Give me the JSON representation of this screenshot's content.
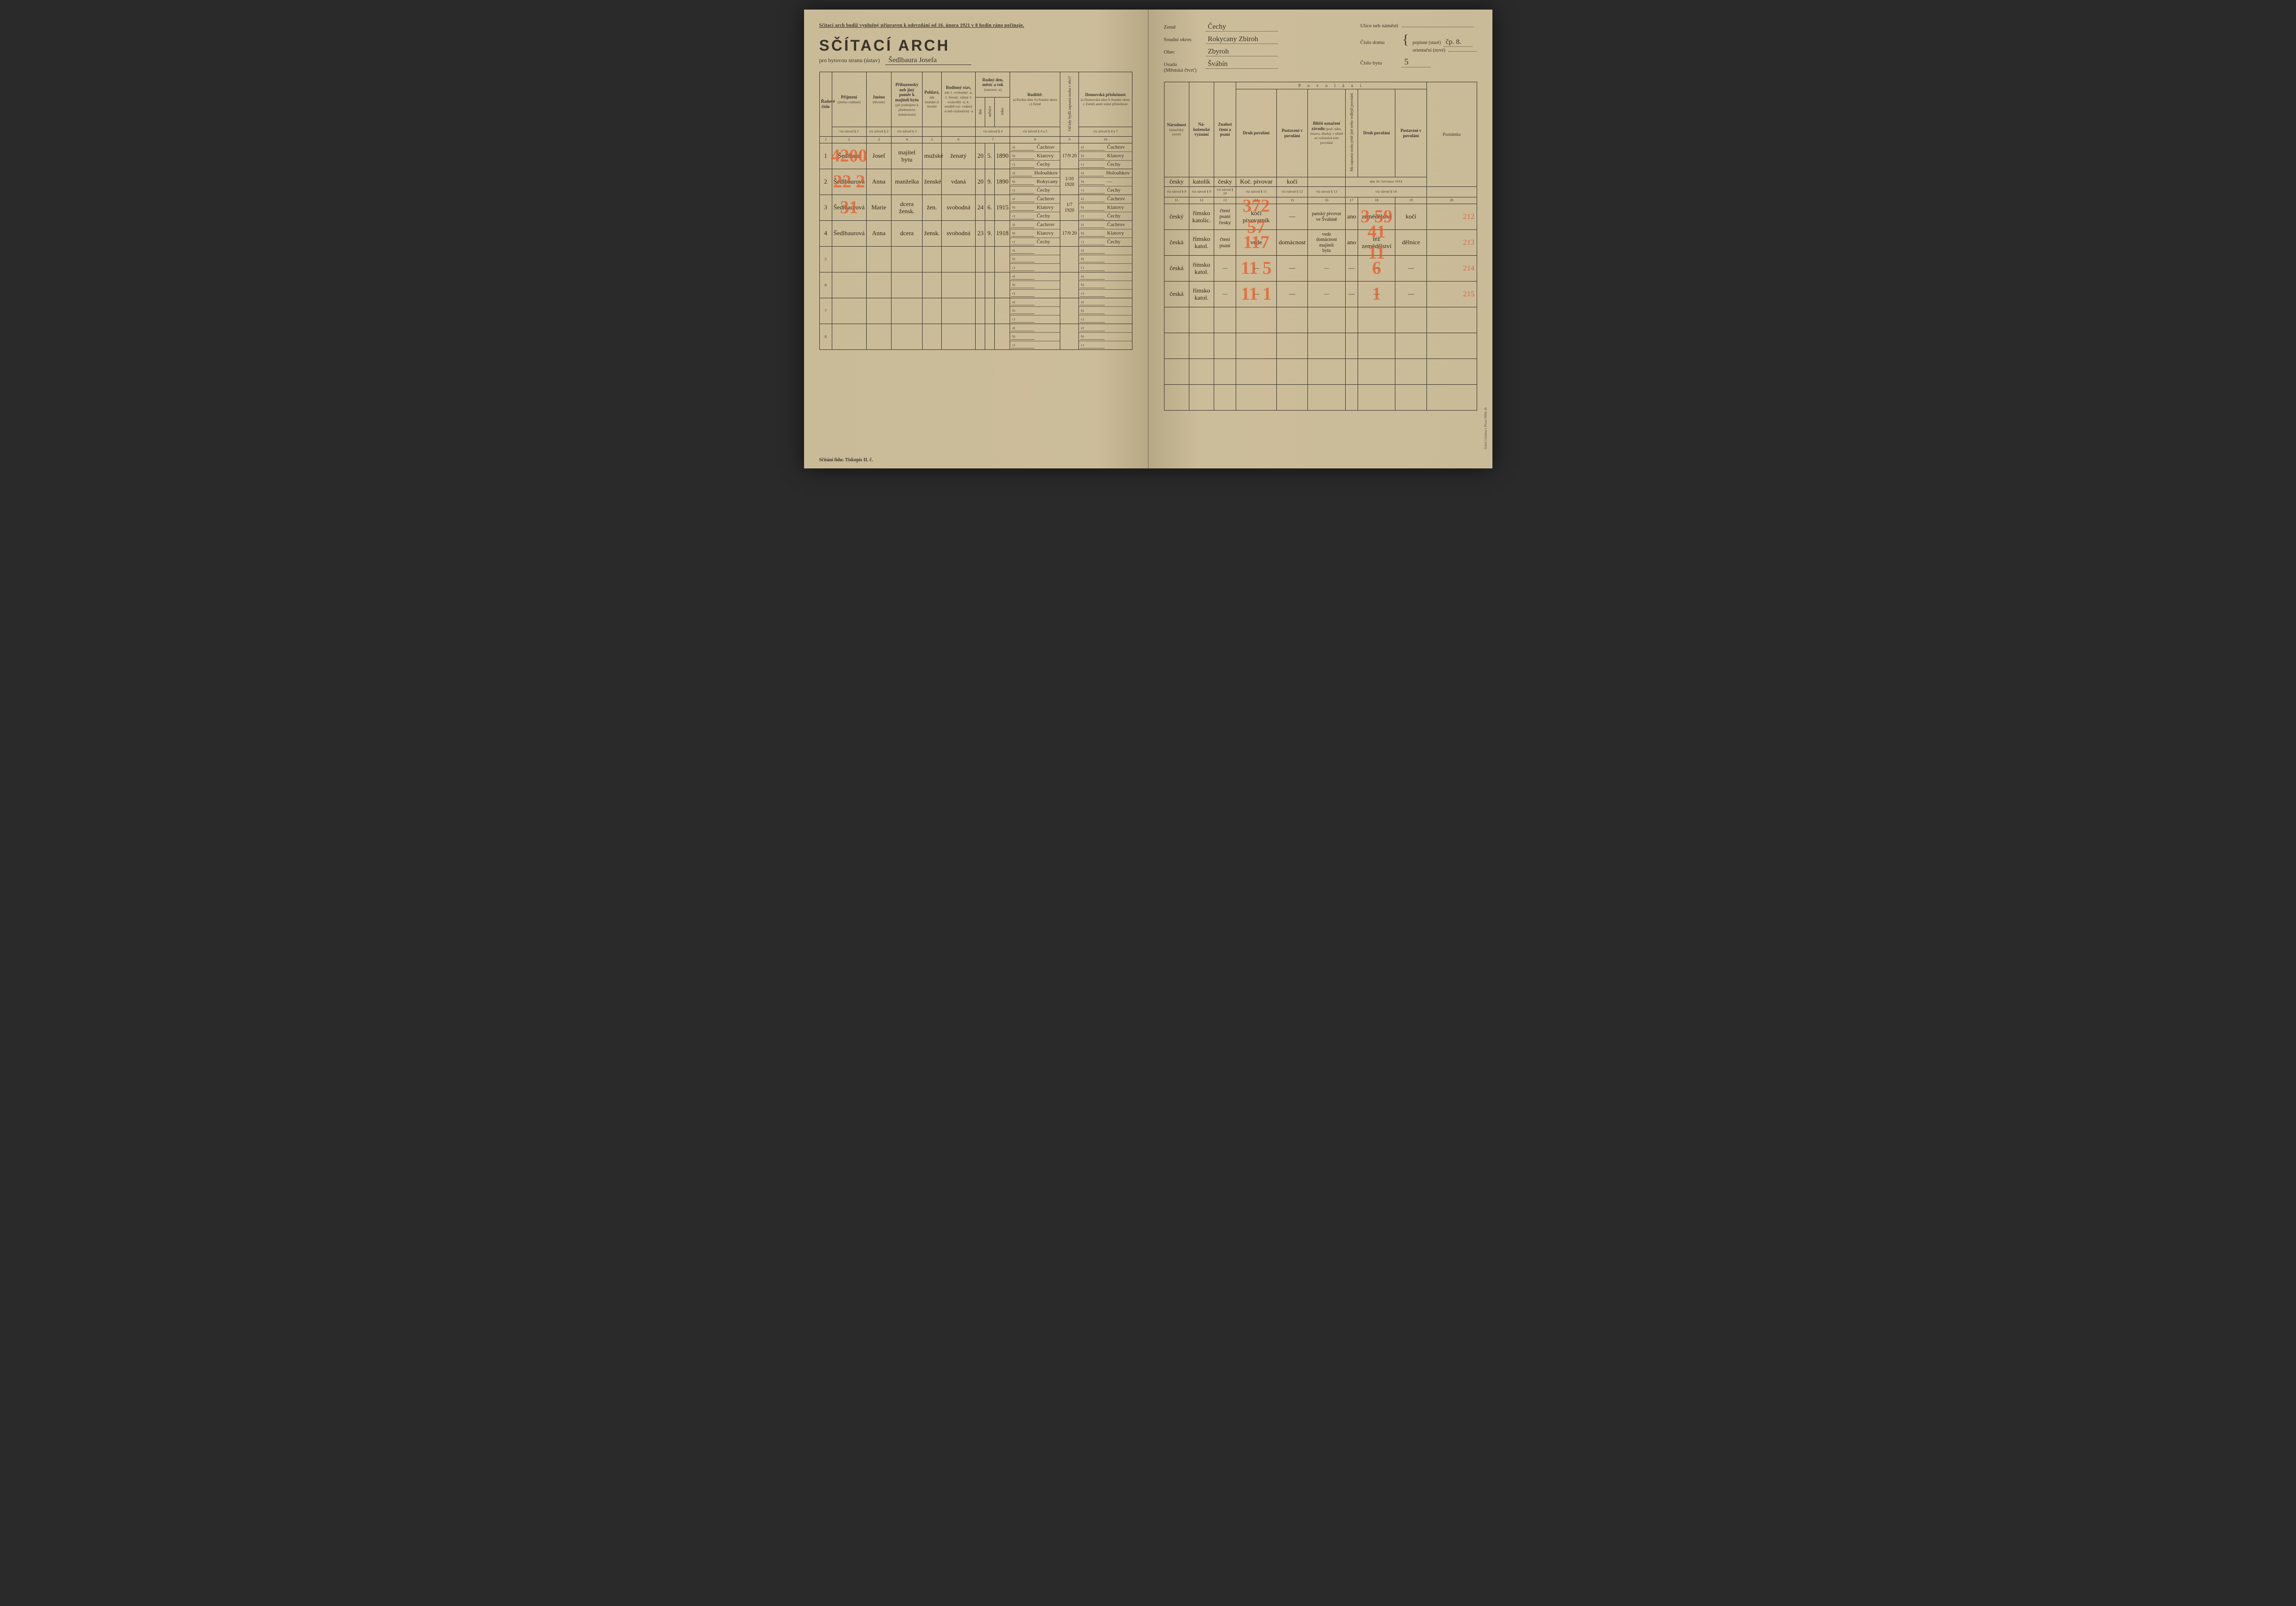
{
  "topInstruction": "Sčítací arch budiž vyplněný připraven k odevzdání od 16. února 1921 v 8 hodin ráno počínaje.",
  "title": "SČÍTACÍ ARCH",
  "subtitleLabel": "pro bytovou stranu (ústav)",
  "householdHead": "Šedlbaura Josefa",
  "meta": {
    "zeme": {
      "label": "Země",
      "value": "Čechy"
    },
    "soudniOkres": {
      "label": "Soudní okres",
      "value": "Rokycany  Zbiroh"
    },
    "obec": {
      "label": "Obec",
      "value": "Zbyroh"
    },
    "osada": {
      "label": "Osada\n(Městská čtvrť)",
      "value": "Švábín"
    },
    "ulice": {
      "label": "Ulice neb náměstí",
      "value": ""
    },
    "cisloDomu": {
      "label": "Číslo domu",
      "popisne": "popisné (staré)",
      "popisneVal": "čp. 8.",
      "orient": "orientační (nové)",
      "orientVal": ""
    },
    "cisloBytu": {
      "label": "Číslo bytu",
      "value": "5"
    }
  },
  "leftHeaders": {
    "c1": "Řadové\nčíslo",
    "c2": {
      "main": "Příjmení",
      "sub": "(jméno rodinné)"
    },
    "c3": {
      "main": "Jméno",
      "sub": "(křestní)"
    },
    "c4": {
      "main": "Příbuzenský\nneb jiný poměr\nk majiteli bytu",
      "sub": "(při podnájmu\nk přednostovi\ndomácnosti)"
    },
    "c5": {
      "main": "Pohlaví,",
      "sub": "zda\nmužské\nči\nženské"
    },
    "c6": {
      "main": "Rodinný\nstav,",
      "sub": "zda\n1. svobodný -á,\n2. ženatý, vdaná\n3. ovdovělý -á,\n4. soudně roz-\nvedený -á neb\nrozloučený -á"
    },
    "c7": {
      "main": "Rodný den,\nměsíc a rok",
      "sub": "(narozen -a)",
      "d": "dne",
      "m": "měsíce",
      "r": "roku"
    },
    "c8": {
      "main": "Rodiště:",
      "sub": "a) Rodná obec\nb) Soudní okres\nc) Země"
    },
    "c9": "Od kdy bydlí zapsaná\nosoba v obci?",
    "c10": {
      "main": "Domovská\npříslušnost",
      "sub": "(a Domovská obec\nb Soudní okres\nc Země)\naneb\nstátní\npříslušnost"
    }
  },
  "rightHeaders": {
    "povolani": "P o v o l á n í",
    "c11": {
      "main": "Národnost",
      "sub": "(mateřský\njazyk)"
    },
    "c12": {
      "main": "Ná-\nboženské\nvyznání"
    },
    "c13": {
      "main": "Znalost\nčtení\na psaní"
    },
    "c14": "Druh povolání",
    "c15": "Postavení\nv povolání",
    "c16": {
      "main": "Bližší označení\nzávodu",
      "sub": "(pod-\nniku, ústavu,\núřadu), v němž\nse vykonává\ntoto povolání"
    },
    "c17v": "Má zapsaná osoba\nještě jiné nebo\nvedlejší povolání",
    "c18": "Druh povolání",
    "c19": "Postavení\nv povolání",
    "c20": "Poznámka",
    "dateNote": "dne 16. července 1914",
    "handRow": {
      "a": "česky",
      "b": "katolík",
      "c": "česky",
      "d": "Koč. pivovar",
      "e": "kočí"
    }
  },
  "navod": {
    "g": "viz návod §"
  },
  "colNumsLeft": [
    "1",
    "2",
    "3",
    "4",
    "5",
    "6",
    "7",
    "8",
    "9",
    "10"
  ],
  "colNumsRight": [
    "11",
    "12",
    "13",
    "14",
    "15",
    "16",
    "17",
    "18",
    "19",
    "20"
  ],
  "rows": [
    {
      "n": "1",
      "prijmeni": "Šedlbaur",
      "jmeno": "Josef",
      "pomer": "majitel\nbytu",
      "pohlavi": "mužské",
      "stav": "ženatý",
      "den": "20",
      "mes": "5.",
      "rok": "1890",
      "rodA": "Čachrov",
      "rodB": "Klatovy",
      "rodC": "Čechy",
      "odkdy": "17/9 20",
      "domA": "Čachrov",
      "domB": "Klatovy",
      "domC": "Čechy",
      "narod": "český",
      "nabo": "římsko\nkatolic.",
      "cteni": "čtení\npsaní\nčesky",
      "druh": "kočí\npivovarník",
      "post": "—",
      "zavod": "panský pivovar\nve Švabíně",
      "vedl": "ano",
      "druh2": "zemědělství",
      "post2": "kočí",
      "redL": "4200",
      "redR": "372 57",
      "redR2": "3 59",
      "margin": "212"
    },
    {
      "n": "2",
      "prijmeni": "Šedlbaurová",
      "jmeno": "Anna",
      "pomer": "manželka",
      "pohlavi": "ženské",
      "stav": "vdaná",
      "den": "20",
      "mes": "9.",
      "rok": "1890",
      "rodA": "Holoubkov",
      "rodB": "Rokycany",
      "rodC": "Čechy",
      "odkdy": "1/10\n1920",
      "domA": "Holoubkov",
      "domB": "—",
      "domC": "Čechy",
      "narod": "česká",
      "nabo": "římsko\nkatol.",
      "cteni": "čtení\npsaní",
      "druh": "vede",
      "post": "domácnost",
      "zavod": "vede\ndomácnost\nmajiteli\nbytu",
      "vedl": "ano",
      "druh2": "též\nzemědělství",
      "post2": "dělnice",
      "redL": "22 2",
      "redR": "117",
      "redR2": "41 11",
      "margin": "213"
    },
    {
      "n": "3",
      "prijmeni": "Šedlbaurová",
      "jmeno": "Marie",
      "pomer": "dcera\nžensk.",
      "pohlavi": "žen.",
      "stav": "svobodná",
      "den": "24",
      "mes": "6.",
      "rok": "1915",
      "rodA": "Čachrov",
      "rodB": "Klatovy",
      "rodC": "Čechy",
      "odkdy": "1/7\n1920",
      "domA": "Čachrov",
      "domB": "Klatovy",
      "domC": "Čechy",
      "narod": "česká",
      "nabo": "římsko\nkatol.",
      "cteni": "—",
      "druh": "―",
      "post": "―",
      "zavod": "―",
      "vedl": "―",
      "druh2": "―",
      "post2": "―",
      "redL": "31",
      "redR": "11 5",
      "redR2": "6",
      "margin": "214"
    },
    {
      "n": "4",
      "prijmeni": "Šedlbaurová",
      "jmeno": "Anna",
      "pomer": "dcera",
      "pohlavi": "žensk.",
      "stav": "svobodná",
      "den": "23",
      "mes": "9.",
      "rok": "1918",
      "rodA": "Čachrov",
      "rodB": "Klatovy",
      "rodC": "Čechy",
      "odkdy": "17/9 20",
      "domA": "Čachrov",
      "domB": "Klatovy",
      "domC": "Čechy",
      "narod": "česká",
      "nabo": "římsko\nkatol.",
      "cteni": "—",
      "druh": "―",
      "post": "―",
      "zavod": "―",
      "vedl": "―",
      "druh2": "―",
      "post2": "―",
      "redL": "",
      "redR": "11 1",
      "redR2": "1",
      "margin": "215"
    }
  ],
  "emptyRows": [
    "5",
    "6",
    "7",
    "8"
  ],
  "footer": "Sčítání lidu: Tiskopis II. č.",
  "printer": "Státní tiskárna v Praze   6084.-B."
}
